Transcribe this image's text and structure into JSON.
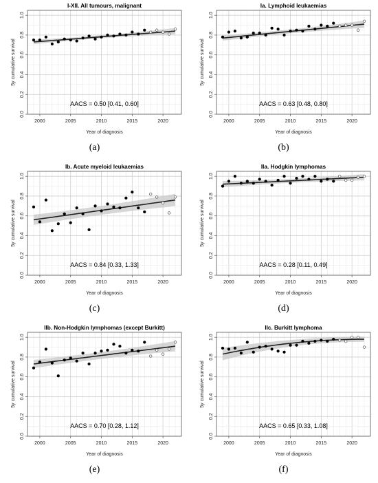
{
  "axis_titles": {
    "x": "Year of diagnosis",
    "y": "5y cumulative survival"
  },
  "chart_data": [
    {
      "type": "scatter",
      "panel": "(a)",
      "title": "I-XII. All tumours, malignant",
      "annotation": "AACS = 0.50 [0.41, 0.60]",
      "xlabel": "Year of diagnosis",
      "ylabel": "5y cumulative survival",
      "xlim": [
        1998,
        2023
      ],
      "ylim": [
        0,
        1.05
      ],
      "xticks": [
        "2000",
        "2005",
        "2010",
        "2015",
        "2020"
      ],
      "yticks": [
        "0.0",
        "0.2",
        "0.4",
        "0.6",
        "0.8",
        "1.0"
      ],
      "grid": true,
      "x": [
        1999,
        2000,
        2001,
        2002,
        2003,
        2004,
        2005,
        2006,
        2007,
        2008,
        2009,
        2010,
        2011,
        2012,
        2013,
        2014,
        2015,
        2016,
        2017,
        2018,
        2019,
        2020,
        2021,
        2022
      ],
      "y": [
        0.75,
        0.75,
        0.78,
        0.71,
        0.73,
        0.76,
        0.75,
        0.74,
        0.77,
        0.79,
        0.76,
        0.78,
        0.8,
        0.79,
        0.81,
        0.8,
        0.83,
        0.81,
        0.85,
        0.83,
        0.85,
        0.83,
        0.81,
        0.86
      ],
      "open_from": 19,
      "fit": {
        "x": [
          1999,
          2022
        ],
        "y": [
          0.73,
          0.84
        ],
        "band": [
          0.01,
          0.02
        ]
      }
    },
    {
      "type": "scatter",
      "panel": "(b)",
      "title": "Ia. Lymphoid leukaemias",
      "annotation": "AACS = 0.63 [0.48, 0.80]",
      "xlabel": "Year of diagnosis",
      "ylabel": "5y cumulative survival",
      "xlim": [
        1998,
        2023
      ],
      "ylim": [
        0,
        1.05
      ],
      "xticks": [
        "2000",
        "2005",
        "2010",
        "2015",
        "2020"
      ],
      "yticks": [
        "0.0",
        "0.2",
        "0.4",
        "0.6",
        "0.8",
        "1.0"
      ],
      "grid": true,
      "x": [
        1999,
        2000,
        2001,
        2002,
        2003,
        2004,
        2005,
        2006,
        2007,
        2008,
        2009,
        2010,
        2011,
        2012,
        2013,
        2014,
        2015,
        2016,
        2017,
        2018,
        2019,
        2020,
        2021,
        2022
      ],
      "y": [
        0.78,
        0.83,
        0.84,
        0.77,
        0.78,
        0.82,
        0.82,
        0.8,
        0.87,
        0.86,
        0.8,
        0.84,
        0.85,
        0.84,
        0.89,
        0.86,
        0.9,
        0.89,
        0.92,
        0.89,
        0.9,
        0.9,
        0.85,
        0.94
      ],
      "open_from": 19,
      "fit": {
        "x": [
          1999,
          2022
        ],
        "y": [
          0.77,
          0.91
        ],
        "band": [
          0.015,
          0.025
        ]
      }
    },
    {
      "type": "scatter",
      "panel": "(c)",
      "title": "Ib. Acute myeloid leukaemias",
      "annotation": "AACS = 0.84 [0.33, 1.33]",
      "xlabel": "Year of diagnosis",
      "ylabel": "5y cumulative survival",
      "xlim": [
        1998,
        2023
      ],
      "ylim": [
        0,
        1.05
      ],
      "xticks": [
        "2000",
        "2005",
        "2010",
        "2015",
        "2020"
      ],
      "yticks": [
        "0.0",
        "0.2",
        "0.4",
        "0.6",
        "0.8",
        "1.0"
      ],
      "grid": true,
      "x": [
        1999,
        2000,
        2001,
        2002,
        2003,
        2004,
        2005,
        2006,
        2007,
        2008,
        2009,
        2010,
        2011,
        2012,
        2013,
        2014,
        2015,
        2016,
        2017,
        2018,
        2019,
        2020,
        2021,
        2022
      ],
      "y": [
        0.69,
        0.54,
        0.76,
        0.45,
        0.52,
        0.62,
        0.53,
        0.68,
        0.62,
        0.46,
        0.7,
        0.65,
        0.72,
        0.69,
        0.68,
        0.78,
        0.84,
        0.68,
        0.64,
        0.82,
        0.79,
        0.73,
        0.63,
        0.79
      ],
      "open_from": 19,
      "fit": {
        "x": [
          1999,
          2022
        ],
        "y": [
          0.56,
          0.76
        ],
        "band": [
          0.04,
          0.05
        ]
      }
    },
    {
      "type": "scatter",
      "panel": "(d)",
      "title": "IIa. Hodgkin lymphomas",
      "annotation": "AACS = 0.28 [0.11, 0.49]",
      "xlabel": "Year of diagnosis",
      "ylabel": "5y cumulative survival",
      "xlim": [
        1998,
        2023
      ],
      "ylim": [
        0,
        1.05
      ],
      "xticks": [
        "2000",
        "2005",
        "2010",
        "2015",
        "2020"
      ],
      "yticks": [
        "0.0",
        "0.2",
        "0.4",
        "0.6",
        "0.8",
        "1.0"
      ],
      "grid": true,
      "x": [
        1999,
        2000,
        2001,
        2002,
        2003,
        2004,
        2005,
        2006,
        2007,
        2008,
        2009,
        2010,
        2011,
        2012,
        2013,
        2014,
        2015,
        2016,
        2017,
        2018,
        2019,
        2020,
        2021,
        2022
      ],
      "y": [
        0.9,
        0.95,
        1.0,
        0.93,
        0.95,
        0.93,
        0.97,
        0.95,
        0.91,
        0.96,
        1.0,
        0.93,
        0.98,
        1.0,
        0.97,
        1.0,
        0.95,
        0.97,
        0.95,
        1.0,
        0.96,
        0.96,
        0.99,
        1.0
      ],
      "open_from": 19,
      "fit": {
        "x": [
          1999,
          2022
        ],
        "y": [
          0.92,
          0.99
        ],
        "band": [
          0.02,
          0.02
        ]
      }
    },
    {
      "type": "scatter",
      "panel": "(e)",
      "title": "IIb. Non-Hodgkin lymphomas (except Burkitt)",
      "annotation": "AACS = 0.70 [0.28, 1.12]",
      "xlabel": "Year of diagnosis",
      "ylabel": "5y cumulative survival",
      "xlim": [
        1998,
        2023
      ],
      "ylim": [
        0,
        1.05
      ],
      "xticks": [
        "2000",
        "2005",
        "2010",
        "2015",
        "2020"
      ],
      "yticks": [
        "0.0",
        "0.2",
        "0.4",
        "0.6",
        "0.8",
        "1.0"
      ],
      "grid": true,
      "x": [
        1999,
        2000,
        2001,
        2002,
        2003,
        2004,
        2005,
        2006,
        2007,
        2008,
        2009,
        2010,
        2011,
        2012,
        2013,
        2014,
        2015,
        2016,
        2017,
        2018,
        2019,
        2020,
        2021,
        2022
      ],
      "y": [
        0.69,
        0.75,
        0.88,
        0.74,
        0.61,
        0.77,
        0.79,
        0.76,
        0.84,
        0.73,
        0.84,
        0.86,
        0.87,
        0.93,
        0.91,
        0.84,
        0.87,
        0.86,
        0.95,
        0.81,
        0.87,
        0.83,
        0.88,
        0.95
      ],
      "open_from": 19,
      "fit": {
        "x": [
          1999,
          2022
        ],
        "y": [
          0.73,
          0.91
        ],
        "band": [
          0.03,
          0.04
        ]
      }
    },
    {
      "type": "scatter",
      "panel": "(f)",
      "title": "IIc. Burkitt lymphoma",
      "annotation": "AACS = 0.65 [0.33, 1.08]",
      "xlabel": "Year of diagnosis",
      "ylabel": "5y cumulative survival",
      "xlim": [
        1998,
        2023
      ],
      "ylim": [
        0,
        1.05
      ],
      "xticks": [
        "2000",
        "2005",
        "2010",
        "2015",
        "2020"
      ],
      "yticks": [
        "0.0",
        "0.2",
        "0.4",
        "0.6",
        "0.8",
        "1.0"
      ],
      "grid": true,
      "x": [
        1999,
        2000,
        2001,
        2002,
        2003,
        2004,
        2005,
        2006,
        2007,
        2008,
        2009,
        2010,
        2011,
        2012,
        2013,
        2014,
        2015,
        2016,
        2017,
        2018,
        2019,
        2020,
        2021,
        2022
      ],
      "y": [
        0.89,
        0.88,
        0.89,
        0.84,
        0.95,
        0.85,
        0.9,
        0.91,
        0.88,
        0.86,
        0.85,
        0.92,
        0.92,
        0.96,
        0.94,
        0.96,
        0.97,
        0.96,
        0.98,
        0.97,
        0.96,
        1.0,
        1.0,
        0.9
      ],
      "open_from": 19,
      "curve": "saturating",
      "fit": {
        "x": [
          1999,
          2022
        ],
        "y": [
          0.83,
          0.98
        ],
        "band": [
          0.05,
          0.015
        ]
      }
    }
  ]
}
